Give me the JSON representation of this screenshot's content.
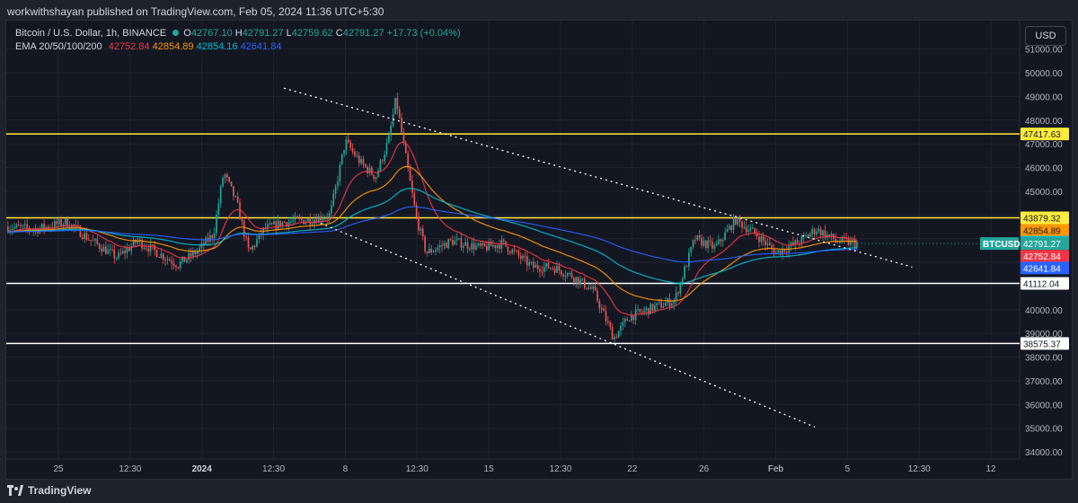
{
  "publisher": "workwithshayan published on TradingView.com, Feb 05, 2024 11:36 UTC+5:30",
  "legend": {
    "symbol": "Bitcoin / U.S. Dollar, 1h, BINANCE",
    "o_label": "O",
    "o": "42767.10",
    "h_label": "H",
    "h": "42791.27",
    "l_label": "L",
    "l": "42759.62",
    "c_label": "C",
    "c": "42791.27",
    "change": "+17.73 (+0.04%)",
    "ema_label": "EMA 20/50/100/200",
    "ema20": "42752.84",
    "ema50": "42854.89",
    "ema100": "42854.16",
    "ema200": "42641.84"
  },
  "currency_button": "USD",
  "brand": "TradingView",
  "colors": {
    "up": "#26a69a",
    "down": "#ef5350",
    "ema20": "#f23645",
    "ema50": "#ff9800",
    "ema100": "#00bcd4",
    "ema200": "#2962ff",
    "yellow": "#ffeb3b",
    "white": "#ffffff"
  },
  "chart_data": {
    "type": "candlestick",
    "symbol": "BTCUSD",
    "timeframe": "1h",
    "y_ticks": [
      "34000.00",
      "35000.00",
      "36000.00",
      "37000.00",
      "38000.00",
      "39000.00",
      "40000.00",
      "41000.00",
      "42000.00",
      "43000.00",
      "44000.00",
      "45000.00",
      "46000.00",
      "47000.00",
      "48000.00",
      "49000.00",
      "50000.00",
      "51000.00"
    ],
    "x_ticks": [
      "25",
      "12:30",
      "2024",
      "12:30",
      "8",
      "12:30",
      "15",
      "12:30",
      "22",
      "26",
      "Feb",
      "5",
      "12:30",
      "12"
    ],
    "ylim": [
      33700,
      52200
    ],
    "horizontal_levels": [
      {
        "value": 47417.63,
        "label": "47417.63",
        "color": "#ffeb3b"
      },
      {
        "value": 43879.32,
        "label": "43879.32",
        "color": "#ffeb3b"
      },
      {
        "value": 41112.04,
        "label": "41112.04",
        "color": "#ffffff"
      },
      {
        "value": 38575.37,
        "label": "38575.37",
        "color": "#ffffff"
      }
    ],
    "price_tags": [
      {
        "text": "42854.89",
        "value": 42854.89,
        "color": "#ff9800"
      },
      {
        "text": "42854.16",
        "value": 42854.16,
        "color": "#00bcd4"
      },
      {
        "text": "42791.27",
        "value": 42791.27,
        "color": "#26a69a",
        "symbol": "BTCUSD"
      },
      {
        "text": "42752.84",
        "value": 42752.84,
        "color": "#f23645"
      },
      {
        "text": "42641.84",
        "value": 42641.84,
        "color": "#2962ff"
      }
    ],
    "trendlines": [
      {
        "name": "upper",
        "points": [
          [
            0.274,
            49350
          ],
          [
            0.894,
            41800
          ]
        ]
      },
      {
        "name": "lower",
        "points": [
          [
            0.31,
            43650
          ],
          [
            0.798,
            35050
          ]
        ]
      }
    ],
    "price_path": [
      [
        0.0,
        43500
      ],
      [
        0.03,
        43400
      ],
      [
        0.06,
        43700
      ],
      [
        0.085,
        42900
      ],
      [
        0.11,
        42200
      ],
      [
        0.13,
        42900
      ],
      [
        0.15,
        42400
      ],
      [
        0.17,
        41900
      ],
      [
        0.19,
        42500
      ],
      [
        0.205,
        43200
      ],
      [
        0.215,
        45800
      ],
      [
        0.228,
        44500
      ],
      [
        0.24,
        42400
      ],
      [
        0.255,
        43400
      ],
      [
        0.275,
        43700
      ],
      [
        0.3,
        43800
      ],
      [
        0.32,
        44000
      ],
      [
        0.335,
        47100
      ],
      [
        0.35,
        46200
      ],
      [
        0.365,
        45600
      ],
      [
        0.378,
        47200
      ],
      [
        0.385,
        48900
      ],
      [
        0.398,
        45600
      ],
      [
        0.405,
        43900
      ],
      [
        0.415,
        42400
      ],
      [
        0.44,
        42900
      ],
      [
        0.47,
        42600
      ],
      [
        0.49,
        42800
      ],
      [
        0.52,
        41800
      ],
      [
        0.54,
        41800
      ],
      [
        0.56,
        41400
      ],
      [
        0.58,
        40800
      ],
      [
        0.6,
        38800
      ],
      [
        0.615,
        39700
      ],
      [
        0.64,
        40100
      ],
      [
        0.66,
        40400
      ],
      [
        0.68,
        43000
      ],
      [
        0.7,
        42600
      ],
      [
        0.72,
        43800
      ],
      [
        0.74,
        43200
      ],
      [
        0.76,
        42400
      ],
      [
        0.78,
        42800
      ],
      [
        0.8,
        43400
      ],
      [
        0.82,
        42900
      ],
      [
        0.84,
        42791
      ]
    ]
  }
}
